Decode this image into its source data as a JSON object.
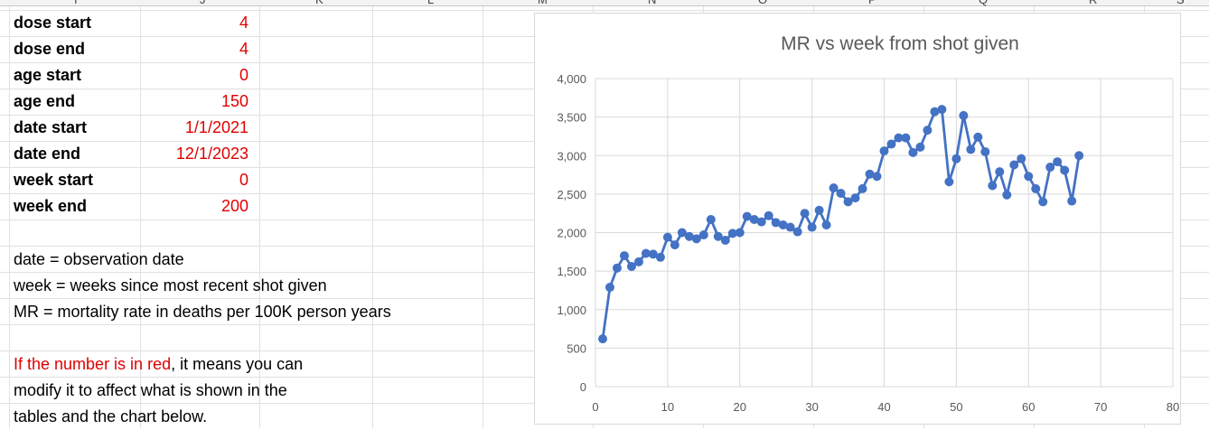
{
  "columns": {
    "letters": [
      "I",
      "J",
      "K",
      "L",
      "M",
      "N",
      "O",
      "P",
      "Q",
      "R",
      "S"
    ]
  },
  "params": [
    {
      "label": "dose start",
      "value": "4"
    },
    {
      "label": "dose end",
      "value": "4"
    },
    {
      "label": "age start",
      "value": "0"
    },
    {
      "label": "age end",
      "value": "150"
    },
    {
      "label": "date start",
      "value": "1/1/2021"
    },
    {
      "label": "date end",
      "value": "12/1/2023"
    },
    {
      "label": "week start",
      "value": "0"
    },
    {
      "label": "week end",
      "value": "200"
    }
  ],
  "notes": {
    "line1": "date = observation date",
    "line2": "week = weeks since most recent shot given",
    "line3": "MR = mortality rate in deaths per 100K person years",
    "red_part": "If the number is in red",
    "rest_part": ", it means you can",
    "line5": "modify it to affect what is shown in the",
    "line6": "tables and the chart below."
  },
  "colors": {
    "series": "#4472c4",
    "input_red": "#e00000",
    "grid": "#d9d9d9"
  },
  "chart_data": {
    "type": "scatter",
    "title": "MR vs week from shot given",
    "xlabel": "",
    "ylabel": "",
    "xlim": [
      0,
      80
    ],
    "ylim": [
      0,
      4000
    ],
    "x_ticks": [
      0,
      10,
      20,
      30,
      40,
      50,
      60,
      70,
      80
    ],
    "y_ticks": [
      0,
      500,
      1000,
      1500,
      2000,
      2500,
      3000,
      3500,
      4000
    ],
    "x_tick_labels": [
      "0",
      "10",
      "20",
      "30",
      "40",
      "50",
      "60",
      "70",
      "80"
    ],
    "y_tick_labels": [
      "0",
      "500",
      "1,000",
      "1,500",
      "2,000",
      "2,500",
      "3,000",
      "3,500",
      "4,000"
    ],
    "grid": true,
    "legend": "none",
    "markers": true,
    "lines": true,
    "series": [
      {
        "x": [
          1,
          2,
          3,
          4,
          5,
          6,
          7,
          8,
          9,
          10,
          11,
          12,
          13,
          14,
          15,
          16,
          17,
          18,
          19,
          20,
          21,
          22,
          23,
          24,
          25,
          26,
          27,
          28,
          29,
          30,
          31,
          32,
          33,
          34,
          35,
          36,
          37,
          38,
          39,
          40,
          41,
          42,
          43,
          44,
          45,
          46,
          47,
          48,
          49,
          50,
          51,
          52,
          53,
          54,
          55,
          56,
          57,
          58,
          59,
          60,
          61,
          62,
          63,
          64,
          65,
          66,
          67
        ],
        "y": [
          620,
          1290,
          1540,
          1700,
          1560,
          1620,
          1730,
          1720,
          1680,
          1940,
          1840,
          2000,
          1950,
          1920,
          1970,
          2170,
          1950,
          1900,
          1990,
          2000,
          2210,
          2170,
          2140,
          2220,
          2130,
          2100,
          2070,
          2010,
          2250,
          2070,
          2290,
          2100,
          2580,
          2510,
          2400,
          2450,
          2570,
          2760,
          2730,
          3060,
          3150,
          3230,
          3230,
          3040,
          3110,
          3330,
          3570,
          3600,
          2660,
          2960,
          3520,
          3080,
          3240,
          3050,
          2610,
          2790,
          2490,
          2880,
          2960,
          2730,
          2570,
          2400,
          2850,
          2920,
          2810,
          2410,
          3000
        ]
      }
    ]
  }
}
